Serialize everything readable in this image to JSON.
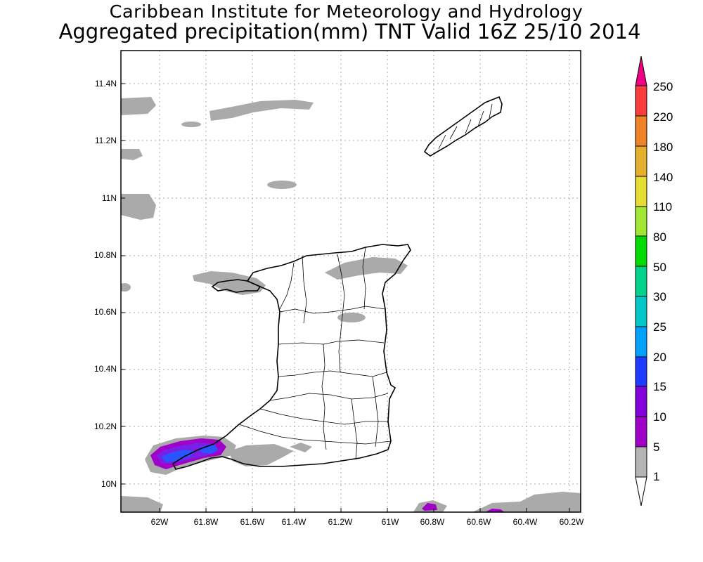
{
  "header": {
    "institute": "Caribbean Institute for Meteorology and Hydrology",
    "product": "Aggregated precipitation(mm) TNT Valid 16Z 25/10 2014"
  },
  "map": {
    "lon_range": [
      -62.37,
      -60.16
    ],
    "lat_range": [
      9.9,
      11.5
    ],
    "lat_ticks": [
      "10N",
      "10.2N",
      "10.4N",
      "10.6N",
      "10.8N",
      "11N",
      "11.2N",
      "11.4N"
    ],
    "lon_ticks": [
      "62W",
      "61.8W",
      "61.6W",
      "61.4W",
      "61.2W",
      "61W",
      "60.8W",
      "60.6W",
      "60.4W",
      "60.2W"
    ],
    "grid": true
  },
  "colorbar": {
    "labels": [
      "1",
      "5",
      "10",
      "15",
      "20",
      "25",
      "30",
      "50",
      "80",
      "110",
      "140",
      "180",
      "220",
      "250"
    ],
    "colors": [
      "#b4b4b4",
      "#a000c8",
      "#8200dc",
      "#1e3cff",
      "#00a0ff",
      "#00c8c8",
      "#00d28c",
      "#00dc00",
      "#a0e632",
      "#e6dc32",
      "#e6af2d",
      "#f08228",
      "#fa3c3c",
      "#f00082"
    ]
  }
}
